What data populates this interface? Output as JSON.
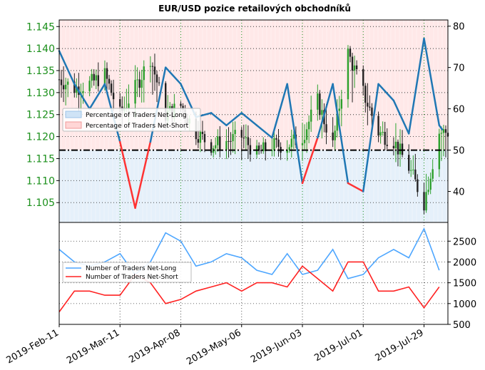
{
  "chart_data": [
    {
      "type": "line",
      "title": "EUR/USD pozice retailových obchodníků",
      "ylabel_left": "",
      "ylabel_right": "",
      "left_axis_ticks": [
        "1.105",
        "1.110",
        "1.115",
        "1.120",
        "1.125",
        "1.130",
        "1.135",
        "1.140",
        "1.145"
      ],
      "left_axis_range": [
        1.1005,
        1.1465
      ],
      "right_axis_ticks": [
        "40",
        "50",
        "60",
        "70",
        "80"
      ],
      "right_axis_range": [
        32.5,
        81.5
      ],
      "reference_line": 50,
      "legend": {
        "placement": "center-left",
        "entries": [
          "Percentage of Traders Net-Long",
          "Percentage of Traders Net-Short"
        ]
      },
      "colors": {
        "net_long": "#1f77b4",
        "net_short": "#ff3333",
        "long_fill": "#cfe3f6",
        "short_fill": "#ffd6d6",
        "candle_up": "#2ca02c",
        "candle_down": "#222222"
      },
      "x": [
        "2019-02-11",
        "2019-02-18",
        "2019-02-25",
        "2019-03-04",
        "2019-03-11",
        "2019-03-18",
        "2019-03-25",
        "2019-04-01",
        "2019-04-08",
        "2019-04-15",
        "2019-04-22",
        "2019-04-29",
        "2019-05-06",
        "2019-05-13",
        "2019-05-20",
        "2019-05-27",
        "2019-06-03",
        "2019-06-10",
        "2019-06-17",
        "2019-06-24",
        "2019-07-01",
        "2019-07-08",
        "2019-07-15",
        "2019-07-22",
        "2019-07-29",
        "2019-08-05"
      ],
      "series": [
        {
          "name": "Percentage of Traders Net-Long",
          "values": [
            74,
            66,
            60,
            66,
            52,
            36,
            52,
            70,
            66,
            58,
            59,
            56,
            59,
            56,
            53,
            66,
            42,
            53,
            66,
            42,
            40,
            66,
            62,
            54,
            77,
            56
          ]
        }
      ],
      "price_ohlc_approx": {
        "close": [
          1.133,
          1.131,
          1.132,
          1.134,
          1.125,
          1.131,
          1.138,
          1.125,
          1.127,
          1.121,
          1.118,
          1.119,
          1.12,
          1.116,
          1.118,
          1.118,
          1.12,
          1.128,
          1.118,
          1.139,
          1.13,
          1.121,
          1.119,
          1.113,
          1.105,
          1.121
        ],
        "high": [
          1.14,
          1.136,
          1.136,
          1.14,
          1.133,
          1.138,
          1.144,
          1.132,
          1.13,
          1.128,
          1.124,
          1.123,
          1.127,
          1.12,
          1.122,
          1.124,
          1.128,
          1.133,
          1.128,
          1.141,
          1.137,
          1.128,
          1.126,
          1.121,
          1.118,
          1.124
        ],
        "low": [
          1.124,
          1.124,
          1.124,
          1.128,
          1.119,
          1.122,
          1.127,
          1.12,
          1.121,
          1.116,
          1.115,
          1.113,
          1.112,
          1.112,
          1.113,
          1.112,
          1.112,
          1.118,
          1.113,
          1.124,
          1.12,
          1.117,
          1.113,
          1.108,
          1.102,
          1.11
        ]
      }
    },
    {
      "type": "line",
      "ylabel": "",
      "y_axis_ticks": [
        "500",
        "1000",
        "1500",
        "2000",
        "2500"
      ],
      "y_axis_range": [
        500,
        2950
      ],
      "x_tick_labels": [
        "2019-Feb-11",
        "2019-Mar-11",
        "2019-Apr-08",
        "2019-May-06",
        "2019-Jun-03",
        "2019-Jul-01",
        "2019-Jul-29"
      ],
      "legend": {
        "placement": "center-left",
        "entries": [
          "Number of Traders Net-Long",
          "Number of Traders Net-Short"
        ]
      },
      "colors": {
        "net_long": "#4da6ff",
        "net_short": "#ff2222"
      },
      "x": [
        "2019-02-11",
        "2019-02-18",
        "2019-02-25",
        "2019-03-04",
        "2019-03-11",
        "2019-03-18",
        "2019-03-25",
        "2019-04-01",
        "2019-04-08",
        "2019-04-15",
        "2019-04-22",
        "2019-04-29",
        "2019-05-06",
        "2019-05-13",
        "2019-05-20",
        "2019-05-27",
        "2019-06-03",
        "2019-06-10",
        "2019-06-17",
        "2019-06-24",
        "2019-07-01",
        "2019-07-08",
        "2019-07-15",
        "2019-07-22",
        "2019-07-29",
        "2019-08-05"
      ],
      "series": [
        {
          "name": "Number of Traders Net-Long",
          "values": [
            2300,
            2000,
            1900,
            2000,
            2200,
            1700,
            2000,
            2700,
            2500,
            1900,
            2000,
            2200,
            2100,
            1800,
            1700,
            2200,
            1700,
            1800,
            2300,
            1600,
            1700,
            2100,
            2300,
            2100,
            2800,
            1800
          ]
        },
        {
          "name": "Number of Traders Net-Short",
          "values": [
            800,
            1300,
            1300,
            1200,
            1200,
            1700,
            1500,
            1000,
            1100,
            1300,
            1400,
            1500,
            1300,
            1500,
            1500,
            1400,
            1900,
            1600,
            1300,
            2000,
            2000,
            1300,
            1300,
            1400,
            900,
            1400
          ]
        }
      ]
    }
  ]
}
